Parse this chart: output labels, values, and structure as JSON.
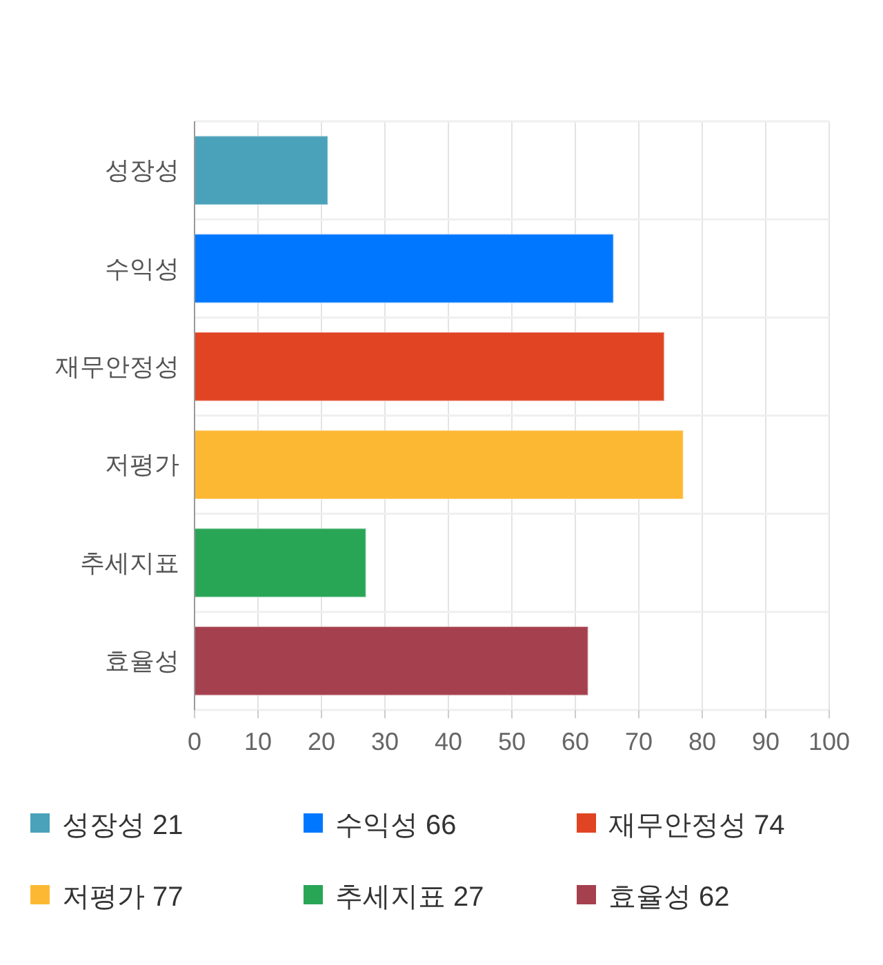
{
  "chart_data": {
    "type": "bar",
    "orientation": "horizontal",
    "stacked": true,
    "categories": [
      "성장성",
      "수익성",
      "재무안정성",
      "저평가",
      "추세지표",
      "효율성"
    ],
    "series": [
      {
        "name": "성장성 21",
        "color": "#4aa1ba",
        "values": [
          21,
          null,
          null,
          null,
          null,
          null
        ]
      },
      {
        "name": "수익성 66",
        "color": "#0077ff",
        "values": [
          null,
          66,
          null,
          null,
          null,
          null
        ]
      },
      {
        "name": "재무안정성 74",
        "color": "#e04423",
        "values": [
          null,
          null,
          74,
          null,
          null,
          null
        ]
      },
      {
        "name": "저평가 77",
        "color": "#fdb833",
        "values": [
          null,
          null,
          null,
          77,
          null,
          null
        ]
      },
      {
        "name": "추세지표 27",
        "color": "#29a556",
        "values": [
          null,
          null,
          null,
          null,
          27,
          null
        ]
      },
      {
        "name": "효율성 62",
        "color": "#a5404e",
        "values": [
          null,
          null,
          null,
          null,
          null,
          62
        ]
      }
    ],
    "xlim": [
      0,
      100
    ],
    "xticks": [
      0,
      10,
      20,
      30,
      40,
      50,
      60,
      70,
      80,
      90,
      100
    ],
    "grid": true,
    "legend": "bottom"
  }
}
